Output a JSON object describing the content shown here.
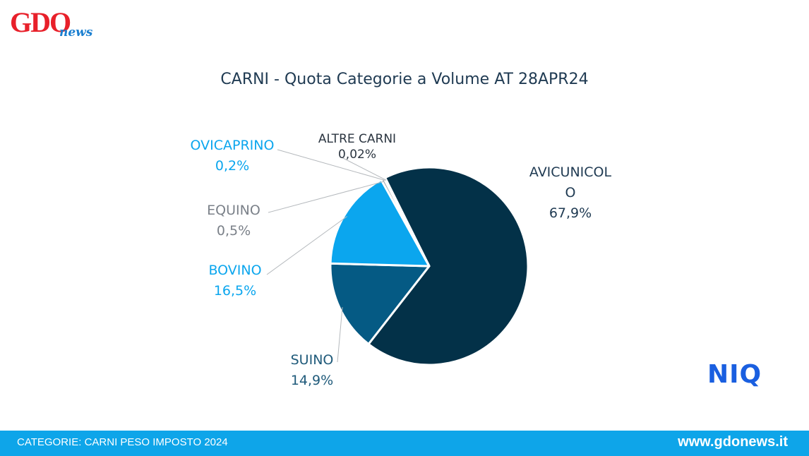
{
  "header": {
    "logo_gdo": "GDO",
    "logo_news": "news"
  },
  "chart_data": {
    "type": "pie",
    "title": "CARNI - Quota Categorie a Volume AT 28APR24",
    "slices": [
      {
        "name": "AVICUNICOLO",
        "label_lines": [
          "AVICUNICOL",
          "O"
        ],
        "value_label": "67,9%",
        "value": 67.9,
        "color": "#033148",
        "label_color": "#1f3a52"
      },
      {
        "name": "SUINO",
        "label_lines": [
          "SUINO"
        ],
        "value_label": "14,9%",
        "value": 14.9,
        "color": "#055a84",
        "label_color": "#1f5a7a"
      },
      {
        "name": "BOVINO",
        "label_lines": [
          "BOVINO"
        ],
        "value_label": "16,5%",
        "value": 16.5,
        "color": "#0ba6ee",
        "label_color": "#0ba6ee"
      },
      {
        "name": "EQUINO",
        "label_lines": [
          "EQUINO"
        ],
        "value_label": "0,5%",
        "value": 0.5,
        "color": "#a4a9ae",
        "label_color": "#7b8189"
      },
      {
        "name": "OVICAPRINO",
        "label_lines": [
          "OVICAPRINO"
        ],
        "value_label": "0,2%",
        "value": 0.2,
        "color": "#0ba6ee",
        "label_color": "#0ba6ee"
      },
      {
        "name": "ALTRE CARNI",
        "label_lines": [
          "ALTRE CARNI"
        ],
        "value_label": "0,02%",
        "value": 0.02,
        "color": "#6b7178",
        "label_color": "#2b3540"
      }
    ]
  },
  "brand": {
    "niq": "NIQ"
  },
  "footer": {
    "category": "CATEGORIE: CARNI PESO IMPOSTO 2024",
    "website": "www.gdonews.it"
  }
}
